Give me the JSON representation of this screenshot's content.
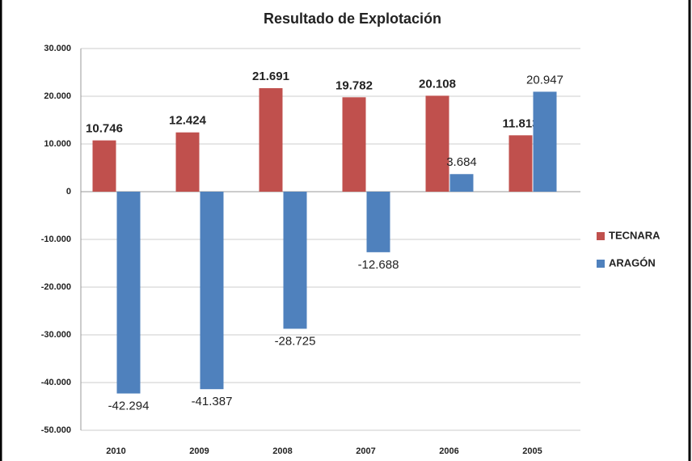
{
  "chart_data": {
    "type": "bar",
    "title": "Resultado de Explotación",
    "categories": [
      "2010",
      "2009",
      "2008",
      "2007",
      "2006",
      "2005"
    ],
    "series": [
      {
        "name": "TECNARA",
        "color": "#c0504d",
        "values": [
          10746,
          12424,
          21691,
          19782,
          20108,
          11813
        ],
        "value_labels": [
          "10.746",
          "12.424",
          "21.691",
          "19.782",
          "20.108",
          "11.813"
        ]
      },
      {
        "name": "ARAGÓN",
        "color": "#4f81bd",
        "values": [
          -42294,
          -41387,
          -28725,
          -12688,
          3684,
          20947
        ],
        "value_labels": [
          "-42.294",
          "-41.387",
          "-28.725",
          "-12.688",
          "3.684",
          "20.947"
        ]
      }
    ],
    "ylim": [
      -50000,
      30000
    ],
    "yticks": [
      {
        "value": -50000,
        "label": "-50.000"
      },
      {
        "value": -40000,
        "label": "-40.000"
      },
      {
        "value": -30000,
        "label": "-30.000"
      },
      {
        "value": -20000,
        "label": "-20.000"
      },
      {
        "value": -10000,
        "label": "-10.000"
      },
      0,
      {
        "value": 10000,
        "label": "10.000"
      },
      {
        "value": 20000,
        "label": "20.000"
      },
      {
        "value": 30000,
        "label": "30.000"
      }
    ],
    "grid": true,
    "legend": "right"
  }
}
